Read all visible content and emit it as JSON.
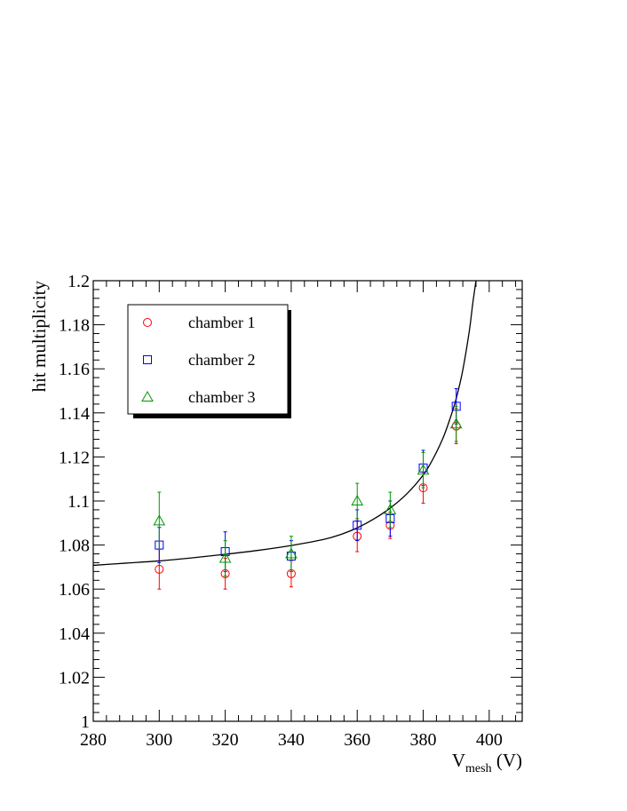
{
  "chart_data": {
    "type": "scatter",
    "title": "",
    "xlabel_main": "V",
    "xlabel_sub": "mesh",
    "xlabel_unit": " (V)",
    "ylabel": "hit multiplicity",
    "xlim": [
      280,
      410
    ],
    "ylim": [
      1.0,
      1.2
    ],
    "x_ticks": [
      280,
      300,
      320,
      340,
      360,
      380,
      400
    ],
    "x_tick_labels": [
      "280",
      "300",
      "320",
      "340",
      "360",
      "380",
      "400"
    ],
    "y_ticks": [
      1.0,
      1.02,
      1.04,
      1.06,
      1.08,
      1.1,
      1.12,
      1.14,
      1.16,
      1.18,
      1.2
    ],
    "y_tick_labels": [
      "1",
      "1.02",
      "1.04",
      "1.06",
      "1.08",
      "1.1",
      "1.12",
      "1.14",
      "1.16",
      "1.18",
      "1.2"
    ],
    "grid": false,
    "legend_position": "top-left",
    "series": [
      {
        "name": "chamber 1",
        "marker": "circle",
        "color": "#ff0000",
        "x": [
          300,
          320,
          340,
          360,
          370,
          380,
          390
        ],
        "y": [
          1.069,
          1.067,
          1.067,
          1.084,
          1.089,
          1.106,
          1.134
        ],
        "err": [
          0.009,
          0.007,
          0.006,
          0.007,
          0.006,
          0.007,
          0.008
        ]
      },
      {
        "name": "chamber 2",
        "marker": "square",
        "color": "#0000ff",
        "x": [
          300,
          320,
          340,
          360,
          370,
          380,
          390
        ],
        "y": [
          1.08,
          1.077,
          1.075,
          1.089,
          1.092,
          1.115,
          1.143
        ],
        "err": [
          0.008,
          0.009,
          0.007,
          0.007,
          0.008,
          0.008,
          0.008
        ]
      },
      {
        "name": "chamber 3",
        "marker": "triangle",
        "color": "#009900",
        "x": [
          300,
          320,
          340,
          360,
          370,
          380,
          390
        ],
        "y": [
          1.091,
          1.074,
          1.076,
          1.1,
          1.096,
          1.114,
          1.135
        ],
        "err": [
          0.013,
          0.008,
          0.008,
          0.008,
          0.008,
          0.008,
          0.008
        ]
      }
    ],
    "fit_curve": {
      "color": "#000000",
      "x": [
        280,
        290,
        300,
        310,
        320,
        330,
        340,
        350,
        355,
        360,
        365,
        370,
        375,
        380,
        383,
        386,
        388,
        390,
        392,
        394,
        395,
        396
      ],
      "y": [
        1.0708,
        1.0718,
        1.0728,
        1.0742,
        1.0758,
        1.0776,
        1.0798,
        1.0826,
        1.0848,
        1.0878,
        1.0918,
        1.0968,
        1.1032,
        1.1118,
        1.1192,
        1.1286,
        1.1368,
        1.1465,
        1.1595,
        1.1775,
        1.1895,
        1.2
      ]
    }
  }
}
